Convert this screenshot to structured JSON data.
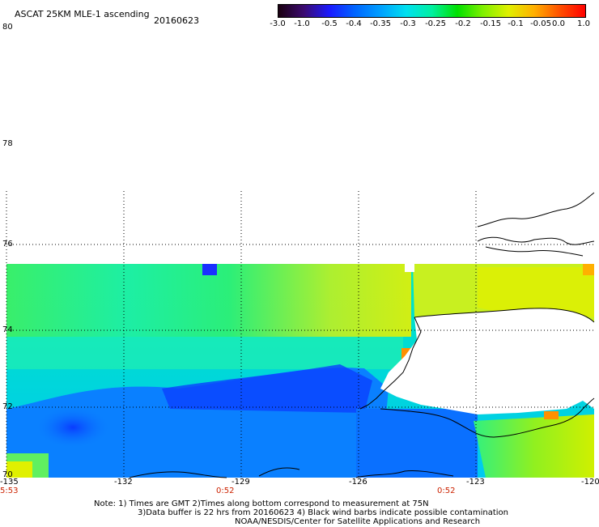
{
  "header": {
    "title": "ASCAT 25KM MLE-1 ascending",
    "date": "20160623"
  },
  "colorbar": {
    "labels": [
      "-3.0",
      "-1.0",
      "-0.5",
      "-0.4",
      "-0.35",
      "-0.3",
      "-0.25",
      "-0.2",
      "-0.15",
      "-0.1",
      "-0.05",
      "0.0",
      "1.0"
    ],
    "colors": [
      "#1a0010",
      "#3b0a70",
      "#1a1aff",
      "#0066ff",
      "#00a0ff",
      "#00e0f0",
      "#00f0a0",
      "#00e000",
      "#80f000",
      "#e0f000",
      "#ffb000",
      "#ff5000",
      "#ff0000"
    ]
  },
  "map": {
    "lat_labels": [
      "80",
      "78",
      "76",
      "74",
      "72",
      "70"
    ],
    "lon_labels": [
      "-135",
      "-132",
      "-129",
      "-126",
      "-123",
      "-120"
    ],
    "time_labels": [
      "5:53",
      "0:52",
      "0:52"
    ]
  },
  "notes": {
    "line1": "Note: 1) Times are GMT 2)Times along bottom correspond to measurement at 75N",
    "line2": "3)Data buffer is 22 hrs from 20160623 4) Black wind barbs indicate possible contamination",
    "line3": "NOAA/NESDIS/Center for Satellite Applications and Research"
  }
}
